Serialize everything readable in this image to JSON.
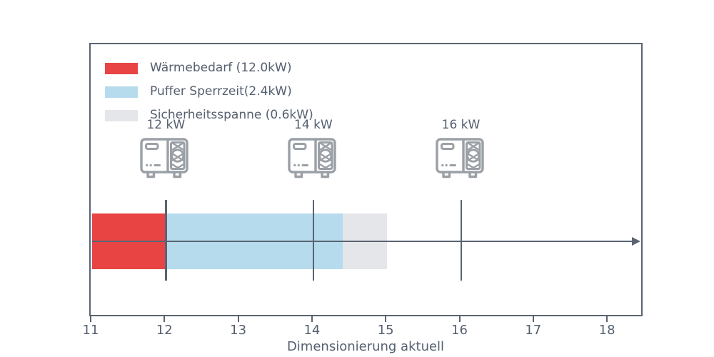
{
  "chart_data": {
    "type": "bar",
    "orientation": "horizontal-stacked",
    "xlabel": "Dimensionierung aktuell",
    "xlim": [
      11,
      18.5
    ],
    "x_ticks": [
      11,
      12,
      13,
      14,
      15,
      16,
      17,
      18
    ],
    "grid": false,
    "legend_position": "upper-left-inside",
    "segments": [
      {
        "name": "waermebedarf",
        "legend_label": "Wärmebedarf (12.0kW)",
        "start": 11,
        "end": 12,
        "value_kw": 12.0,
        "color": "#e84444"
      },
      {
        "name": "puffer-sperrzeit",
        "legend_label": "Puffer Sperrzeit(2.4kW)",
        "start": 12,
        "end": 14.4,
        "value_kw": 2.4,
        "color": "#b5dbec"
      },
      {
        "name": "sicherheitsspanne",
        "legend_label": "Sicherheitsspanne (0.6kW)",
        "start": 14.4,
        "end": 15,
        "value_kw": 0.6,
        "color": "#e4e6ea"
      }
    ],
    "markers": [
      {
        "value": 12,
        "label": "12 kW",
        "icon": "heat-pump-icon"
      },
      {
        "value": 14,
        "label": "14 kW",
        "icon": "heat-pump-icon"
      },
      {
        "value": 16,
        "label": "16 kW",
        "icon": "heat-pump-icon"
      }
    ],
    "axis_arrow": true,
    "colors": {
      "axis_line": "#5a6472",
      "text": "#556070",
      "icon_stroke": "#9aa0a6"
    }
  }
}
